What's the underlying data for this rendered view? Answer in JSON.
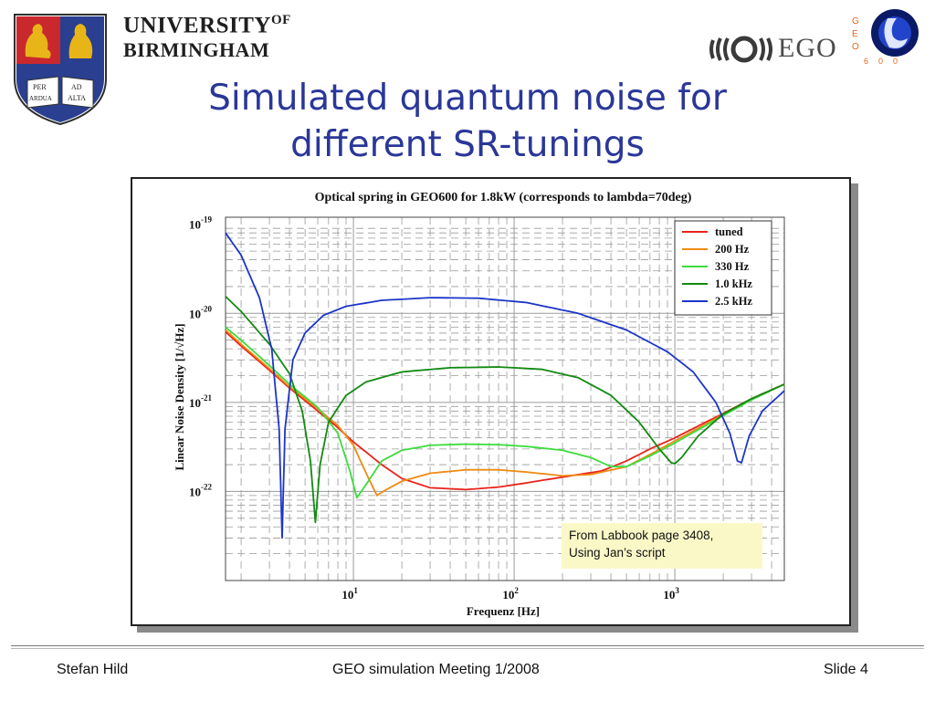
{
  "header": {
    "university_line1": "UNIVERSITY",
    "university_of": "OF",
    "university_line2": "BIRMINGHAM",
    "crest_motto": [
      "PER",
      "AD",
      "ARDUA",
      "ALTA"
    ],
    "ego_text": "EGO",
    "geo_letters": [
      "G",
      "E",
      "O"
    ],
    "geo_number": [
      "6",
      "0",
      "0"
    ]
  },
  "slide": {
    "title_line1": "Simulated quantum noise for",
    "title_line2": "different SR-tunings"
  },
  "note": {
    "line1": "From Labbook page 3408,",
    "line2": "Using Jan’s script"
  },
  "footer": {
    "left": "Stefan Hild",
    "center": "GEO simulation Meeting 1/2008",
    "right": "Slide 4"
  },
  "colors": {
    "title": "#2a3798",
    "tuned": "#e8231c",
    "200hz": "#ef8a12",
    "330hz": "#3ddc3d",
    "1khz": "#128a12",
    "2_5khz": "#1c35c8"
  },
  "chart_data": {
    "type": "line",
    "title": "Optical spring in GEO600 for 1.8kW (corresponds to lambda=70deg)",
    "xlabel": "Frequenz [Hz]",
    "ylabel": "Linear Noise Density [1/√Hz]",
    "x_scale": "log",
    "y_scale": "log",
    "xlim": [
      1.6,
      4800
    ],
    "ylim": [
      1e-23,
      1.2e-19
    ],
    "x_ticks": [
      {
        "base": "10",
        "exp": "1",
        "value": 10
      },
      {
        "base": "10",
        "exp": "2",
        "value": 100
      },
      {
        "base": "10",
        "exp": "3",
        "value": 1000
      }
    ],
    "y_ticks": [
      {
        "base": "10",
        "exp": "-19",
        "value": 1e-19
      },
      {
        "base": "10",
        "exp": "-20",
        "value": 1e-20
      },
      {
        "base": "10",
        "exp": "-21",
        "value": 1e-21
      },
      {
        "base": "10",
        "exp": "-22",
        "value": 1e-22
      }
    ],
    "grid": true,
    "legend_position": "top-right",
    "series": [
      {
        "name": "tuned",
        "color": "#e8231c",
        "points": [
          [
            1.6,
            6.2e-21
          ],
          [
            2,
            4.3e-21
          ],
          [
            3,
            2.3e-21
          ],
          [
            4,
            1.45e-21
          ],
          [
            6,
            8e-22
          ],
          [
            8,
            5.2e-22
          ],
          [
            10,
            3.6e-22
          ],
          [
            15,
            2e-22
          ],
          [
            20,
            1.4e-22
          ],
          [
            30,
            1.1e-22
          ],
          [
            50,
            1.05e-22
          ],
          [
            80,
            1.12e-22
          ],
          [
            120,
            1.25e-22
          ],
          [
            200,
            1.45e-22
          ],
          [
            350,
            1.7e-22
          ],
          [
            500,
            2.2e-22
          ],
          [
            700,
            3e-22
          ],
          [
            1000,
            4e-22
          ],
          [
            1500,
            5.8e-22
          ],
          [
            2000,
            7.5e-22
          ],
          [
            3000,
            1.1e-21
          ],
          [
            4800,
            1.6e-21
          ]
        ]
      },
      {
        "name": "200 Hz",
        "color": "#ef8a12",
        "points": [
          [
            1.6,
            6.5e-21
          ],
          [
            2,
            4.5e-21
          ],
          [
            3,
            2.4e-21
          ],
          [
            4,
            1.5e-21
          ],
          [
            6,
            8.5e-22
          ],
          [
            8,
            5.5e-22
          ],
          [
            10,
            3.3e-22
          ],
          [
            12,
            1.6e-22
          ],
          [
            14,
            9e-23
          ],
          [
            16,
            1.05e-22
          ],
          [
            20,
            1.3e-22
          ],
          [
            30,
            1.6e-22
          ],
          [
            50,
            1.75e-22
          ],
          [
            80,
            1.75e-22
          ],
          [
            120,
            1.65e-22
          ],
          [
            200,
            1.5e-22
          ],
          [
            300,
            1.55e-22
          ],
          [
            500,
            1.9e-22
          ],
          [
            700,
            2.6e-22
          ],
          [
            1000,
            3.7e-22
          ],
          [
            1500,
            5.5e-22
          ],
          [
            2000,
            7.3e-22
          ],
          [
            3000,
            1.08e-21
          ],
          [
            4800,
            1.6e-21
          ]
        ]
      },
      {
        "name": "330 Hz",
        "color": "#3ddc3d",
        "points": [
          [
            1.6,
            7e-21
          ],
          [
            2,
            5e-21
          ],
          [
            3,
            2.6e-21
          ],
          [
            4,
            1.6e-21
          ],
          [
            6,
            8.8e-22
          ],
          [
            8,
            4.5e-22
          ],
          [
            9.5,
            1.7e-22
          ],
          [
            10.5,
            8.5e-23
          ],
          [
            12,
            1.2e-22
          ],
          [
            15,
            2.2e-22
          ],
          [
            20,
            2.9e-22
          ],
          [
            30,
            3.3e-22
          ],
          [
            50,
            3.4e-22
          ],
          [
            80,
            3.35e-22
          ],
          [
            120,
            3.2e-22
          ],
          [
            200,
            2.9e-22
          ],
          [
            300,
            2.4e-22
          ],
          [
            400,
            1.9e-22
          ],
          [
            500,
            1.9e-22
          ],
          [
            700,
            2.5e-22
          ],
          [
            1000,
            3.5e-22
          ],
          [
            1500,
            5.3e-22
          ],
          [
            2000,
            7.1e-22
          ],
          [
            3000,
            1.07e-21
          ],
          [
            4800,
            1.6e-21
          ]
        ]
      },
      {
        "name": "1.0 kHz",
        "color": "#128a12",
        "points": [
          [
            1.6,
            1.55e-20
          ],
          [
            2,
            1.05e-20
          ],
          [
            3,
            4.5e-21
          ],
          [
            4,
            2.1e-21
          ],
          [
            4.8,
            8e-22
          ],
          [
            5.4,
            2.2e-22
          ],
          [
            5.8,
            4.5e-23
          ],
          [
            6.2,
            2e-22
          ],
          [
            7,
            6e-22
          ],
          [
            9,
            1.2e-21
          ],
          [
            12,
            1.7e-21
          ],
          [
            20,
            2.2e-21
          ],
          [
            40,
            2.45e-21
          ],
          [
            80,
            2.5e-21
          ],
          [
            150,
            2.35e-21
          ],
          [
            250,
            1.9e-21
          ],
          [
            400,
            1.2e-21
          ],
          [
            600,
            6e-22
          ],
          [
            800,
            3e-22
          ],
          [
            950,
            2.1e-22
          ],
          [
            1000,
            2.05e-22
          ],
          [
            1100,
            2.4e-22
          ],
          [
            1400,
            4.2e-22
          ],
          [
            2000,
            7.4e-22
          ],
          [
            3000,
            1.1e-21
          ],
          [
            4800,
            1.6e-21
          ]
        ]
      },
      {
        "name": "2.5 kHz",
        "color": "#1c35c8",
        "points": [
          [
            1.6,
            8e-20
          ],
          [
            2,
            4.5e-20
          ],
          [
            2.6,
            1.5e-20
          ],
          [
            3.1,
            4e-21
          ],
          [
            3.45,
            5e-22
          ],
          [
            3.6,
            3e-23
          ],
          [
            3.75,
            5e-22
          ],
          [
            4.2,
            3e-21
          ],
          [
            5,
            6e-21
          ],
          [
            6.5,
            9.5e-21
          ],
          [
            9,
            1.2e-20
          ],
          [
            15,
            1.4e-20
          ],
          [
            30,
            1.5e-20
          ],
          [
            60,
            1.48e-20
          ],
          [
            120,
            1.32e-20
          ],
          [
            250,
            1e-20
          ],
          [
            500,
            6.5e-21
          ],
          [
            900,
            3.7e-21
          ],
          [
            1300,
            2.2e-21
          ],
          [
            1800,
            1e-21
          ],
          [
            2200,
            4.5e-22
          ],
          [
            2450,
            2.2e-22
          ],
          [
            2600,
            2.1e-22
          ],
          [
            2900,
            4.2e-22
          ],
          [
            3500,
            8e-22
          ],
          [
            4800,
            1.35e-21
          ]
        ]
      }
    ]
  }
}
